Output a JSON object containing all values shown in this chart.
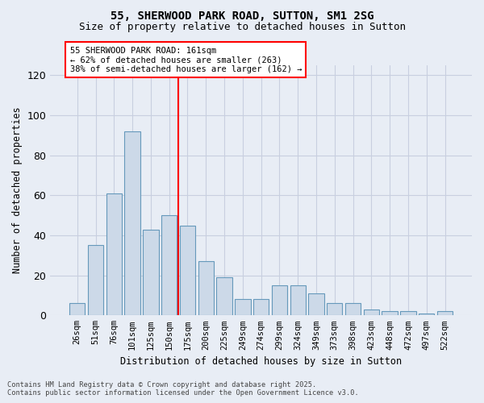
{
  "title1": "55, SHERWOOD PARK ROAD, SUTTON, SM1 2SG",
  "title2": "Size of property relative to detached houses in Sutton",
  "xlabel": "Distribution of detached houses by size in Sutton",
  "ylabel": "Number of detached properties",
  "categories": [
    "26sqm",
    "51sqm",
    "76sqm",
    "101sqm",
    "125sqm",
    "150sqm",
    "175sqm",
    "200sqm",
    "225sqm",
    "249sqm",
    "274sqm",
    "299sqm",
    "324sqm",
    "349sqm",
    "373sqm",
    "398sqm",
    "423sqm",
    "448sqm",
    "472sqm",
    "497sqm",
    "522sqm"
  ],
  "values": [
    6,
    35,
    61,
    92,
    43,
    50,
    45,
    27,
    19,
    8,
    8,
    15,
    15,
    11,
    6,
    6,
    3,
    2,
    2,
    1,
    2
  ],
  "bar_color": "#ccd9e8",
  "bar_edge_color": "#6699bb",
  "vline_index": 5.5,
  "annotation_title": "55 SHERWOOD PARK ROAD: 161sqm",
  "annotation_line1": "← 62% of detached houses are smaller (263)",
  "annotation_line2": "38% of semi-detached houses are larger (162) →",
  "ylim": [
    0,
    125
  ],
  "yticks": [
    0,
    20,
    40,
    60,
    80,
    100,
    120
  ],
  "bg_color": "#e8edf5",
  "grid_color": "#c8cfe0",
  "footer1": "Contains HM Land Registry data © Crown copyright and database right 2025.",
  "footer2": "Contains public sector information licensed under the Open Government Licence v3.0."
}
